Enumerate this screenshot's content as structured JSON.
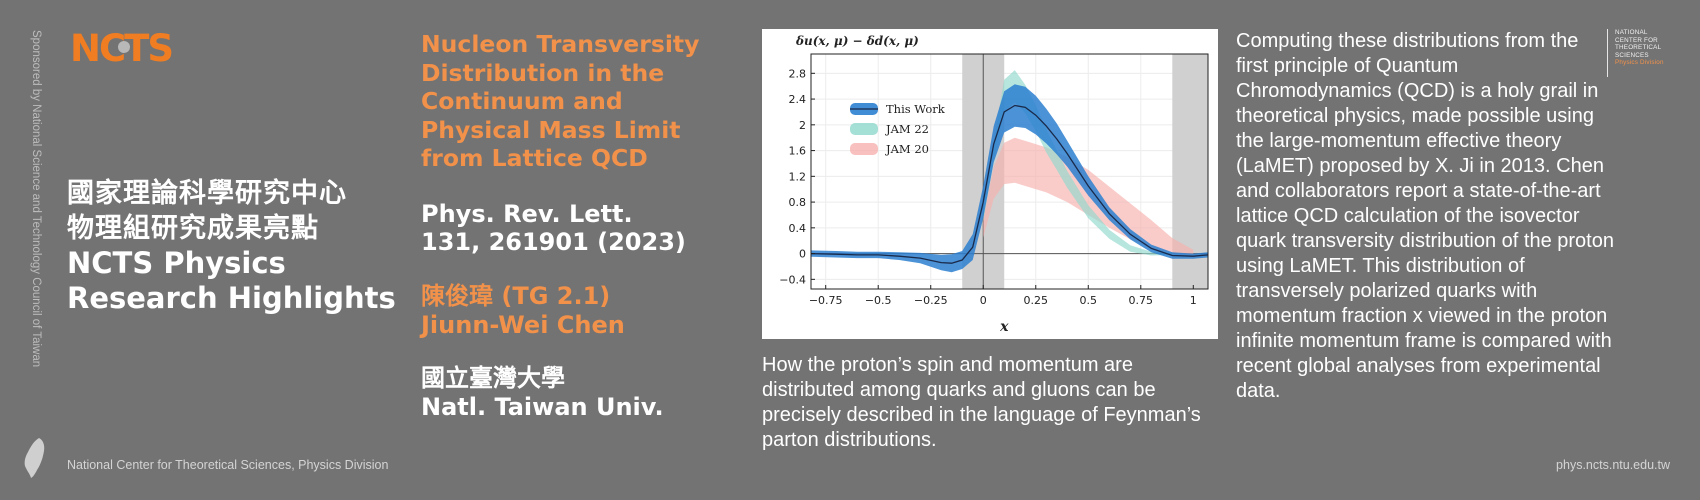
{
  "sidebar": {
    "sponsor": "Sponsored by National Science and Technology Council of Taiwan"
  },
  "logo": {
    "text": "NCTS"
  },
  "highlight": {
    "zh_line1": "國家理論科學研究中心",
    "zh_line2": "物理組研究成果亮點",
    "en_line1": "NCTS Physics",
    "en_line2": "Research Highlights"
  },
  "paper": {
    "title_lines": [
      "Nucleon Transversity",
      "Distribution in the",
      "Continuum and",
      "Physical Mass Limit",
      "from Lattice QCD"
    ],
    "ref_line1": "Phys. Rev. Lett.",
    "ref_line2": "131, 261901 (2023)",
    "author_zh": "陳俊瑋 (TG 2.1)",
    "author_en": "Jiunn-Wei Chen",
    "inst_zh": "國立臺灣大學",
    "inst_en": "Natl. Taiwan Univ."
  },
  "chart_data": {
    "type": "line",
    "title": "δu(x, μ) − δd(x, μ)",
    "xlabel": "x",
    "ylabel": "",
    "xlim": [
      -0.82,
      1.07
    ],
    "ylim": [
      -0.55,
      3.1
    ],
    "xticks": [
      "−0.75",
      "−0.5",
      "−0.25",
      "0",
      "0.25",
      "0.5",
      "0.75",
      "1"
    ],
    "yticks": [
      "−0.4",
      "0",
      "0.4",
      "0.8",
      "1.2",
      "1.6",
      "2",
      "2.4",
      "2.8"
    ],
    "legend_position": "top-left",
    "grid": true,
    "excluded_regions": [
      [
        -0.1,
        0.1
      ],
      [
        0.9,
        1.07
      ]
    ],
    "series": [
      {
        "name": "This Work",
        "color": "#2b7fd0",
        "x": [
          -0.82,
          -0.7,
          -0.6,
          -0.5,
          -0.4,
          -0.3,
          -0.2,
          -0.15,
          -0.1,
          -0.05,
          0,
          0.05,
          0.1,
          0.15,
          0.2,
          0.25,
          0.3,
          0.35,
          0.4,
          0.5,
          0.6,
          0.7,
          0.8,
          0.9,
          1.0,
          1.07
        ],
        "y": [
          0.0,
          -0.01,
          -0.02,
          -0.02,
          -0.04,
          -0.07,
          -0.14,
          -0.15,
          -0.1,
          0.1,
          0.8,
          1.7,
          2.2,
          2.3,
          2.27,
          2.15,
          1.98,
          1.78,
          1.55,
          1.05,
          0.62,
          0.3,
          0.08,
          -0.03,
          -0.04,
          -0.02
        ],
        "band_halfwidth": [
          0.05,
          0.05,
          0.05,
          0.05,
          0.06,
          0.08,
          0.12,
          0.14,
          0.14,
          0.2,
          0.25,
          0.28,
          0.32,
          0.33,
          0.32,
          0.3,
          0.27,
          0.24,
          0.2,
          0.15,
          0.1,
          0.08,
          0.06,
          0.05,
          0.04,
          0.04
        ]
      },
      {
        "name": "JAM 22",
        "color": "#8fd8cc",
        "x": [
          0.0,
          0.05,
          0.1,
          0.15,
          0.2,
          0.25,
          0.3,
          0.35,
          0.4,
          0.5,
          0.6,
          0.7,
          0.8,
          0.9
        ],
        "y": [
          0.6,
          1.6,
          2.45,
          2.6,
          2.4,
          2.1,
          1.75,
          1.45,
          1.15,
          0.65,
          0.3,
          0.08,
          0.0,
          0.0
        ],
        "band_halfwidth": [
          0.1,
          0.15,
          0.25,
          0.25,
          0.22,
          0.2,
          0.18,
          0.15,
          0.13,
          0.1,
          0.07,
          0.05,
          0.03,
          0.02
        ]
      },
      {
        "name": "JAM 20",
        "color": "#f6b0ae",
        "x": [
          0.0,
          0.05,
          0.1,
          0.15,
          0.2,
          0.3,
          0.4,
          0.5,
          0.6,
          0.7,
          0.8,
          0.9,
          1.0
        ],
        "y": [
          0.4,
          1.1,
          1.4,
          1.45,
          1.4,
          1.3,
          1.15,
          0.95,
          0.72,
          0.5,
          0.3,
          0.12,
          0.02
        ],
        "band_halfwidth": [
          0.15,
          0.25,
          0.32,
          0.35,
          0.35,
          0.35,
          0.35,
          0.35,
          0.32,
          0.28,
          0.22,
          0.12,
          0.04
        ]
      }
    ]
  },
  "caption": "How the proton’s spin and momentum are distributed among quarks and gluons can be precisely described in the language of Feynman’s parton distributions.",
  "body": "Computing these distributions from the first principle of Quantum Chromodynamics (QCD) is a holy grail in theoretical physics, made possible using the large-momentum effective theory (LaMET) proposed by X. Ji in 2013. Chen and collaborators report a state-of-the-art lattice QCD calculation of the isovector quark transversity distribution of the proton using LaMET. This distribution of transversely polarized quarks with momentum fraction x viewed in the proton infinite momentum frame is compared with recent global analyses from experimental data.",
  "brand": {
    "l1": "NATIONAL",
    "l2": "CENTER FOR",
    "l3": "THEORETICAL",
    "l4": "SCIENCES",
    "l5": "Physics Division"
  },
  "footer": {
    "left": "National Center for Theoretical Sciences, Physics Division",
    "right": "phys.ncts.ntu.edu.tw"
  }
}
